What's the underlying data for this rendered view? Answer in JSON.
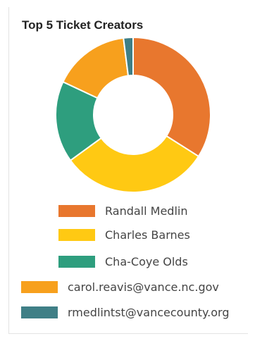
{
  "chart_data": {
    "type": "pie",
    "donut": true,
    "title": "Top 5 Ticket Creators",
    "categories": [
      "Randall  Medlin",
      "Charles Barnes",
      "Cha-Coye Olds",
      "carol.reavis@vance.nc.gov",
      "rmedlintst@vancecounty.org"
    ],
    "values": [
      34,
      31,
      17,
      16,
      2
    ],
    "colors": [
      "#E8772E",
      "#FFC913",
      "#2E9E7E",
      "#F7A01D",
      "#3F7F86"
    ],
    "legend_position": "bottom"
  }
}
